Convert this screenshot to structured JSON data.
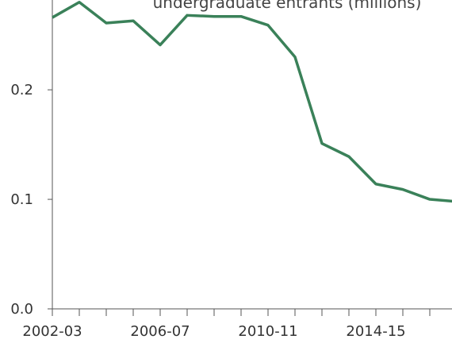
{
  "chart_data": {
    "type": "line",
    "title": "undergraduate entrants (millions)",
    "categories": [
      "2002-03",
      null,
      null,
      null,
      "2006-07",
      null,
      null,
      null,
      "2010-11",
      null,
      null,
      null,
      "2014-15",
      null,
      null,
      null
    ],
    "series": [
      {
        "name": null,
        "color": "#3a8159",
        "values": [
          0.266,
          0.28,
          0.261,
          0.263,
          0.241,
          0.268,
          0.267,
          0.267,
          0.259,
          0.23,
          0.151,
          0.139,
          0.114,
          0.109,
          0.1,
          0.098
        ]
      }
    ],
    "ylim": [
      0,
      0.282
    ],
    "yticks": [
      {
        "value": 0,
        "label": "0.0"
      },
      0.1,
      0.2
    ],
    "grid": false
  }
}
